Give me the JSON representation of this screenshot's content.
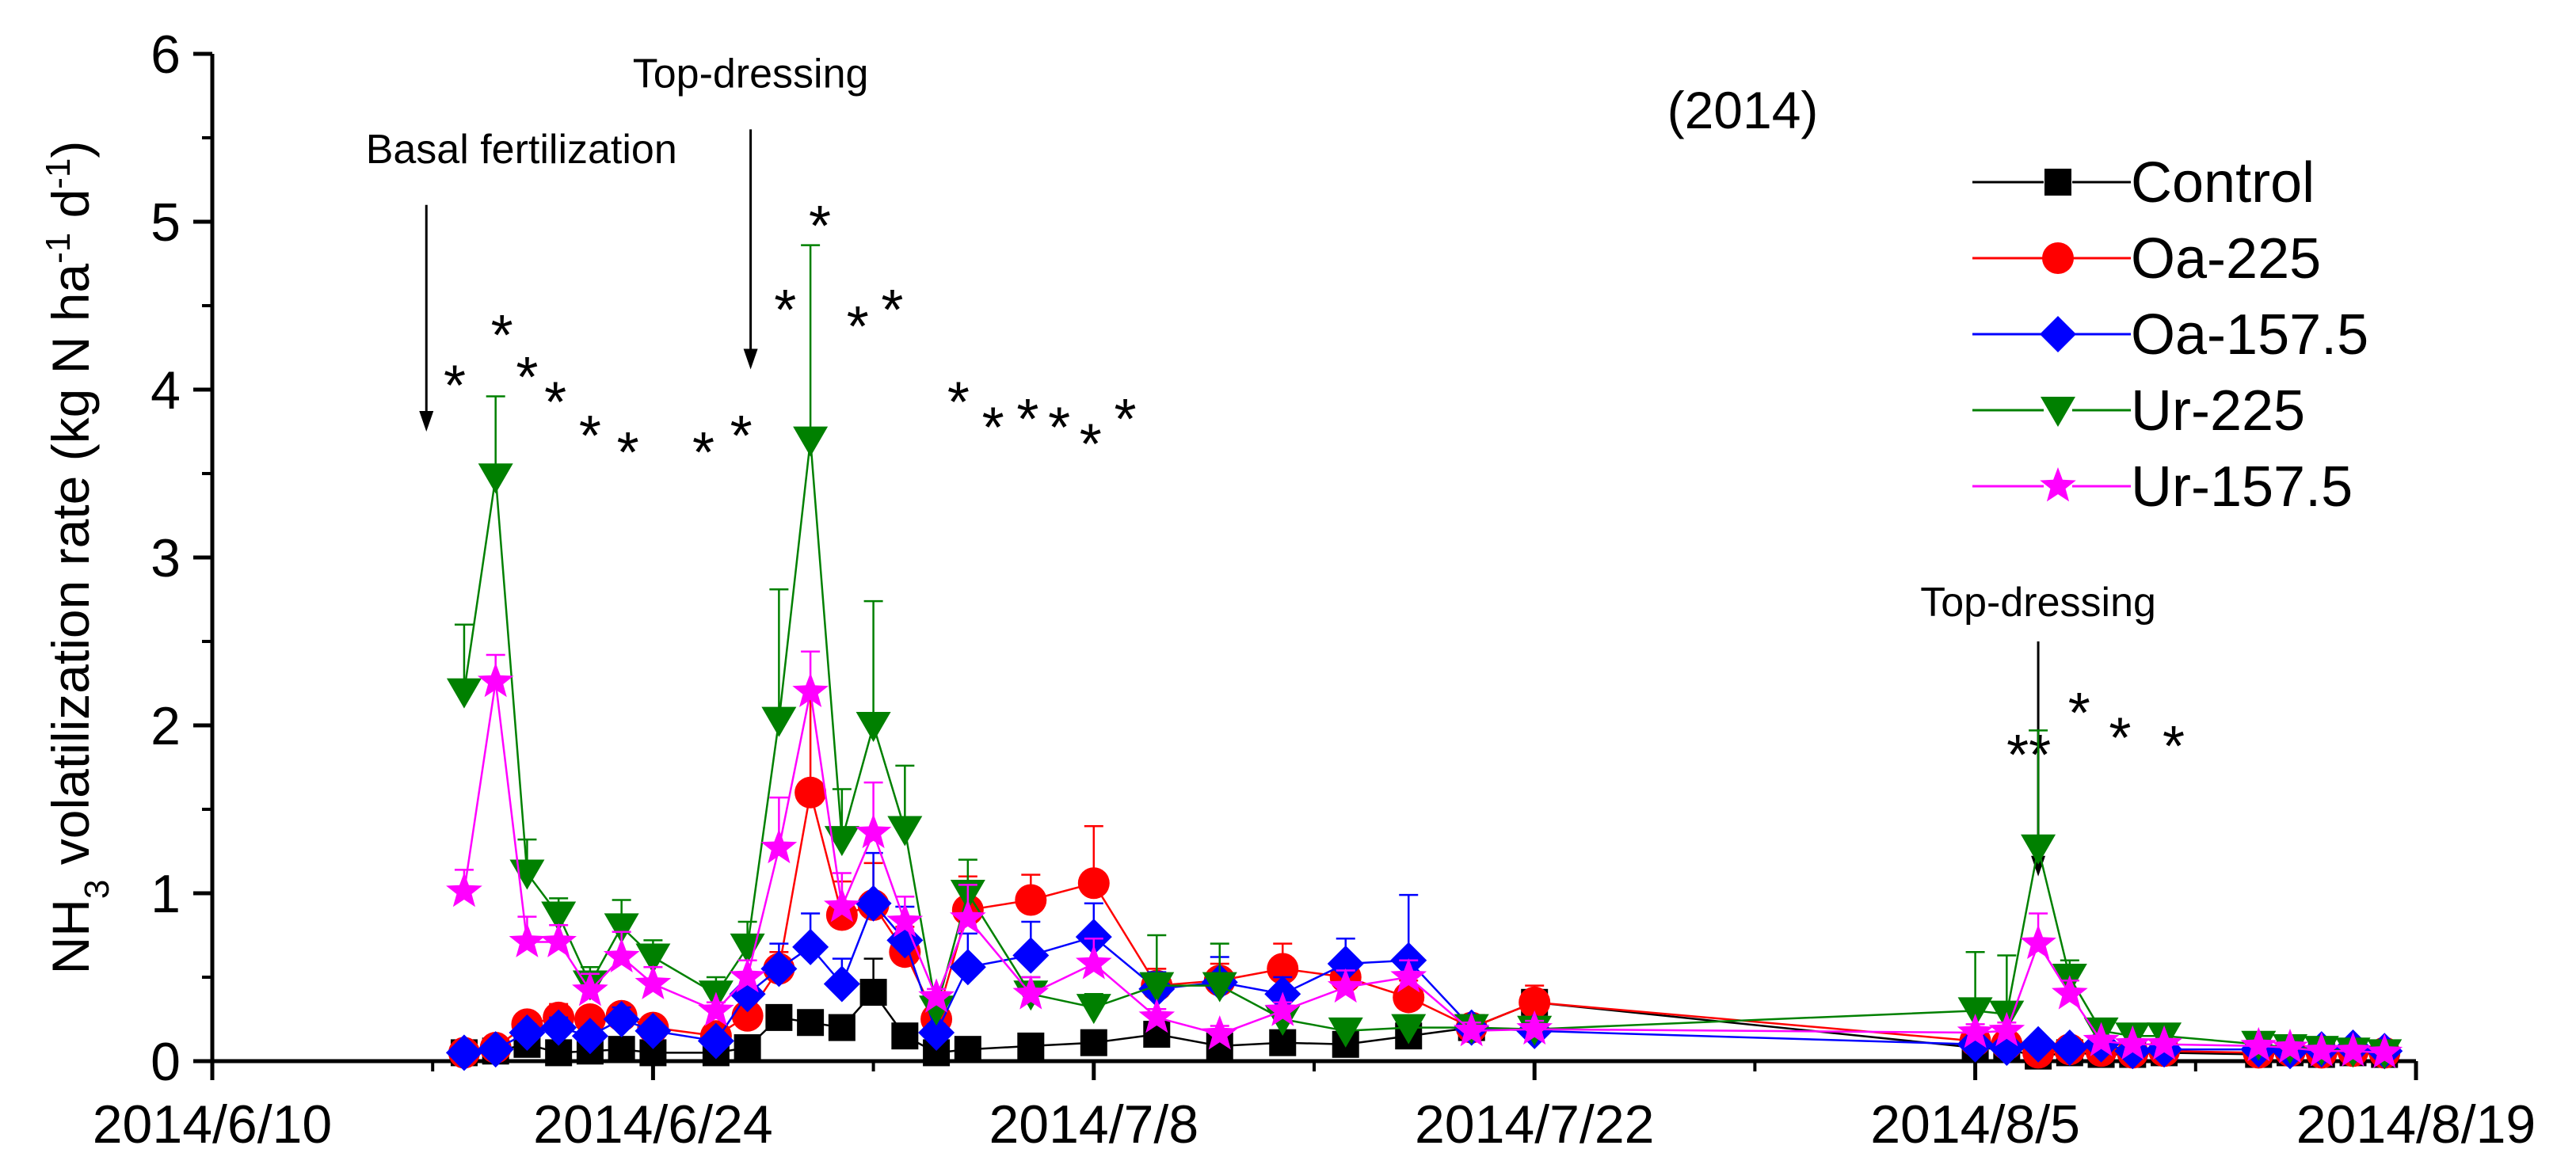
{
  "chart_data": {
    "type": "line",
    "year_label": "(2014)",
    "ylabel": {
      "prefix": "NH",
      "sub": "3",
      "mid": " volatilization rate (kg N ha",
      "sup1": "-1",
      "mid2": " d",
      "sup2": "-1",
      "suffix": ")"
    },
    "xlabel": "",
    "ylim": [
      0,
      6
    ],
    "yticks": [
      "0",
      "1",
      "2",
      "3",
      "4",
      "5",
      "6"
    ],
    "xlim": [
      0,
      70
    ],
    "xticks": [
      {
        "day": 0,
        "label": "2014/6/10"
      },
      {
        "day": 14,
        "label": "2014/6/24"
      },
      {
        "day": 28,
        "label": "2014/7/8"
      },
      {
        "day": 42,
        "label": "2014/7/22"
      },
      {
        "day": 56,
        "label": "2014/8/5"
      },
      {
        "day": 70,
        "label": "2014/8/19"
      }
    ],
    "x_units": "days since 2014/6/10",
    "annotations": [
      {
        "text": "Basal fertilization",
        "day": 6.8,
        "y_text": 5.35,
        "arrow_from": 5.1,
        "arrow_to": 3.75
      },
      {
        "text": "Top-dressing",
        "day": 17.1,
        "y_text": 5.8,
        "arrow_from": 5.55,
        "arrow_to": 4.12
      },
      {
        "text": "Top-dressing",
        "day": 58.0,
        "y_text": 2.65,
        "arrow_from": 2.5,
        "arrow_to": 1.1
      }
    ],
    "significance_marks": [
      {
        "day": 7.7,
        "y": 4.05,
        "text": "*"
      },
      {
        "day": 9.2,
        "y": 4.35,
        "text": "*"
      },
      {
        "day": 10.0,
        "y": 4.1,
        "text": "*"
      },
      {
        "day": 10.9,
        "y": 3.95,
        "text": "*"
      },
      {
        "day": 12.0,
        "y": 3.75,
        "text": "*"
      },
      {
        "day": 13.2,
        "y": 3.65,
        "text": "*"
      },
      {
        "day": 15.6,
        "y": 3.65,
        "text": "*"
      },
      {
        "day": 16.8,
        "y": 3.75,
        "text": "*"
      },
      {
        "day": 18.2,
        "y": 4.5,
        "text": "*"
      },
      {
        "day": 19.3,
        "y": 5.0,
        "text": "*"
      },
      {
        "day": 20.5,
        "y": 4.4,
        "text": "*"
      },
      {
        "day": 21.6,
        "y": 4.5,
        "text": "*"
      },
      {
        "day": 23.7,
        "y": 3.95,
        "text": "*"
      },
      {
        "day": 24.8,
        "y": 3.8,
        "text": "*"
      },
      {
        "day": 25.9,
        "y": 3.85,
        "text": "*"
      },
      {
        "day": 26.9,
        "y": 3.8,
        "text": "*"
      },
      {
        "day": 27.9,
        "y": 3.7,
        "text": "*"
      },
      {
        "day": 29.0,
        "y": 3.85,
        "text": "*"
      },
      {
        "day": 57.7,
        "y": 1.85,
        "text": "**"
      },
      {
        "day": 59.3,
        "y": 2.1,
        "text": "*"
      },
      {
        "day": 60.6,
        "y": 1.95,
        "text": "*"
      },
      {
        "day": 62.3,
        "y": 1.9,
        "text": "*"
      }
    ],
    "series": [
      {
        "name": "Control",
        "color": "#000000",
        "marker": "square",
        "x": [
          8,
          9,
          10,
          11,
          12,
          13,
          14,
          16,
          17,
          18,
          19,
          20,
          21,
          22,
          23,
          24,
          26,
          28,
          30,
          32,
          34,
          36,
          38,
          40,
          42,
          56,
          57,
          58,
          59,
          60,
          61,
          62,
          65,
          66,
          67,
          68,
          69
        ],
        "y": [
          0.05,
          0.06,
          0.1,
          0.05,
          0.06,
          0.07,
          0.05,
          0.05,
          0.08,
          0.26,
          0.23,
          0.2,
          0.41,
          0.15,
          0.05,
          0.07,
          0.09,
          0.11,
          0.16,
          0.09,
          0.11,
          0.1,
          0.15,
          0.2,
          0.35,
          0.08,
          0.07,
          0.03,
          0.05,
          0.04,
          0.04,
          0.05,
          0.04,
          0.05,
          0.04,
          0.05,
          0.04
        ],
        "err": [
          0,
          0,
          0,
          0,
          0,
          0,
          0,
          0,
          0,
          0.07,
          0.05,
          0.05,
          0.2,
          0.05,
          0,
          0,
          0,
          0,
          0.03,
          0,
          0,
          0,
          0,
          0,
          0.03,
          0,
          0,
          0,
          0,
          0,
          0,
          0,
          0,
          0,
          0,
          0,
          0
        ]
      },
      {
        "name": "Oa-225",
        "color": "#ff0000",
        "marker": "circle",
        "x": [
          8,
          9,
          10,
          11,
          12,
          13,
          14,
          16,
          17,
          18,
          19,
          20,
          21,
          22,
          23,
          24,
          26,
          28,
          30,
          32,
          34,
          36,
          38,
          40,
          42,
          56,
          57,
          58,
          59,
          60,
          61,
          62,
          65,
          66,
          67,
          68,
          69
        ],
        "y": [
          0.05,
          0.08,
          0.22,
          0.26,
          0.25,
          0.27,
          0.2,
          0.15,
          0.27,
          0.55,
          1.6,
          0.87,
          0.93,
          0.65,
          0.25,
          0.9,
          0.96,
          1.06,
          0.45,
          0.48,
          0.55,
          0.5,
          0.38,
          0.2,
          0.35,
          0.12,
          0.1,
          0.05,
          0.07,
          0.06,
          0.05,
          0.06,
          0.05,
          0.06,
          0.05,
          0.06,
          0.05
        ],
        "err": [
          0,
          0,
          0.05,
          0.08,
          0.06,
          0.05,
          0.05,
          0.03,
          0.05,
          0.1,
          0.6,
          0.2,
          0.25,
          0.15,
          0.05,
          0.2,
          0.15,
          0.34,
          0.1,
          0.1,
          0.15,
          0.1,
          0.1,
          0.05,
          0.1,
          0.03,
          0,
          0,
          0,
          0,
          0,
          0,
          0,
          0,
          0,
          0,
          0
        ]
      },
      {
        "name": "Oa-157.5",
        "color": "#0000ff",
        "marker": "diamond",
        "x": [
          8,
          9,
          10,
          11,
          12,
          13,
          14,
          16,
          17,
          18,
          19,
          20,
          21,
          22,
          23,
          24,
          26,
          28,
          30,
          32,
          34,
          36,
          38,
          40,
          42,
          56,
          57,
          58,
          59,
          60,
          61,
          62,
          65,
          66,
          67,
          68,
          69
        ],
        "y": [
          0.05,
          0.07,
          0.17,
          0.2,
          0.15,
          0.25,
          0.18,
          0.12,
          0.4,
          0.55,
          0.68,
          0.46,
          0.94,
          0.72,
          0.17,
          0.56,
          0.63,
          0.74,
          0.43,
          0.47,
          0.4,
          0.58,
          0.6,
          0.2,
          0.18,
          0.1,
          0.08,
          0.1,
          0.08,
          0.1,
          0.06,
          0.07,
          0.07,
          0.06,
          0.07,
          0.08,
          0.06
        ],
        "err": [
          0,
          0,
          0.05,
          0.06,
          0.05,
          0.07,
          0.05,
          0.05,
          0.1,
          0.15,
          0.2,
          0.15,
          0.3,
          0.2,
          0.05,
          0.2,
          0.2,
          0.2,
          0.1,
          0.15,
          0.1,
          0.15,
          0.39,
          0.05,
          0.05,
          0,
          0,
          0,
          0,
          0,
          0,
          0,
          0,
          0,
          0,
          0,
          0
        ]
      },
      {
        "name": "Ur-225",
        "color": "#008000",
        "marker": "triangle-down",
        "x": [
          8,
          9,
          10,
          11,
          12,
          13,
          14,
          16,
          17,
          18,
          19,
          20,
          21,
          22,
          23,
          24,
          26,
          28,
          30,
          32,
          34,
          36,
          38,
          40,
          42,
          56,
          57,
          58,
          59,
          60,
          61,
          62,
          65,
          66,
          67,
          68,
          69
        ],
        "y": [
          2.2,
          3.48,
          1.12,
          0.87,
          0.46,
          0.8,
          0.62,
          0.4,
          0.68,
          2.03,
          3.7,
          1.32,
          2.0,
          1.38,
          0.31,
          1.0,
          0.4,
          0.32,
          0.45,
          0.45,
          0.25,
          0.18,
          0.2,
          0.2,
          0.19,
          0.3,
          0.28,
          1.27,
          0.5,
          0.18,
          0.15,
          0.15,
          0.1,
          0.08,
          0.07,
          0.06,
          0.05
        ],
        "err": [
          0.4,
          0.48,
          0.2,
          0.1,
          0.1,
          0.16,
          0.1,
          0.1,
          0.15,
          0.78,
          1.16,
          0.3,
          0.74,
          0.38,
          0.1,
          0.2,
          0.1,
          0.08,
          0.3,
          0.25,
          0.08,
          0.05,
          0.05,
          0.05,
          0.05,
          0.35,
          0.35,
          0.7,
          0.1,
          0.05,
          0.05,
          0.05,
          0,
          0,
          0,
          0,
          0
        ]
      },
      {
        "name": "Ur-157.5",
        "color": "#ff00ff",
        "marker": "star",
        "x": [
          8,
          9,
          10,
          11,
          12,
          13,
          14,
          16,
          17,
          18,
          19,
          20,
          21,
          22,
          23,
          24,
          26,
          28,
          30,
          32,
          34,
          36,
          38,
          40,
          42,
          56,
          57,
          58,
          59,
          60,
          61,
          62,
          65,
          66,
          67,
          68,
          69
        ],
        "y": [
          1.01,
          2.26,
          0.71,
          0.71,
          0.42,
          0.62,
          0.46,
          0.3,
          0.5,
          1.27,
          2.2,
          0.92,
          1.36,
          0.83,
          0.38,
          0.85,
          0.4,
          0.58,
          0.26,
          0.16,
          0.3,
          0.44,
          0.5,
          0.18,
          0.19,
          0.17,
          0.18,
          0.7,
          0.4,
          0.12,
          0.1,
          0.1,
          0.09,
          0.08,
          0.06,
          0.06,
          0.05
        ],
        "err": [
          0.13,
          0.16,
          0.15,
          0.1,
          0.1,
          0.15,
          0.1,
          0.05,
          0.1,
          0.3,
          0.24,
          0.2,
          0.3,
          0.15,
          0.05,
          0.2,
          0.1,
          0.15,
          0.05,
          0.05,
          0.05,
          0.1,
          0.1,
          0.05,
          0.05,
          0.05,
          0.05,
          0.18,
          0.08,
          0.03,
          0,
          0,
          0,
          0,
          0,
          0,
          0
        ]
      }
    ]
  }
}
